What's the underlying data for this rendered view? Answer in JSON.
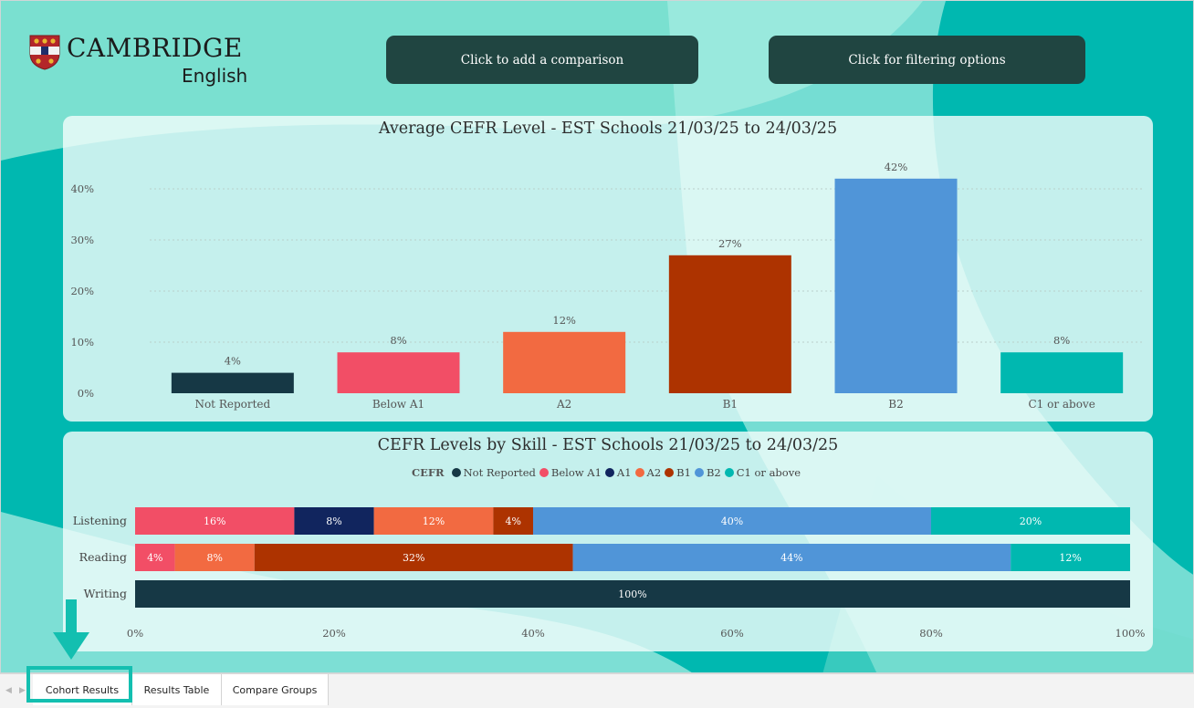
{
  "brand": {
    "name": "CAMBRIDGE",
    "sub": "English"
  },
  "buttons": {
    "compare": "Click to add a comparison",
    "filter": "Click for filtering options"
  },
  "colors": {
    "Not Reported": "#163845",
    "Below A1": "#f24e66",
    "A1": "#11255e",
    "A2": "#f26a41",
    "B1": "#ad3300",
    "B2": "#5095d8",
    "C1 or above": "#00b8b0"
  },
  "chart_data": [
    {
      "type": "bar",
      "title": "Average CEFR Level - EST Schools 21/03/25 to 24/03/25",
      "categories": [
        "Not Reported",
        "Below A1",
        "A2",
        "B1",
        "B2",
        "C1 or above"
      ],
      "values": [
        4,
        8,
        12,
        27,
        42,
        8
      ],
      "value_labels": [
        "4%",
        "8%",
        "12%",
        "27%",
        "42%",
        "8%"
      ],
      "y_ticks": [
        "0%",
        "10%",
        "20%",
        "30%",
        "40%"
      ],
      "ylim": [
        0,
        45
      ],
      "grid": true
    },
    {
      "type": "bar",
      "orientation": "horizontal",
      "stacked": true,
      "title": "CEFR Levels by Skill - EST Schools 21/03/25 to 24/03/25",
      "legend_title": "CEFR",
      "legend": [
        "Not Reported",
        "Below A1",
        "A1",
        "A2",
        "B1",
        "B2",
        "C1 or above"
      ],
      "legend_position": "top",
      "categories": [
        "Listening",
        "Reading",
        "Writing"
      ],
      "rows": [
        {
          "category": "Listening",
          "segments": [
            {
              "name": "Below A1",
              "value": 16,
              "label": "16%"
            },
            {
              "name": "A1",
              "value": 8,
              "label": "8%"
            },
            {
              "name": "A2",
              "value": 12,
              "label": "12%"
            },
            {
              "name": "B1",
              "value": 4,
              "label": "4%"
            },
            {
              "name": "B2",
              "value": 40,
              "label": "40%"
            },
            {
              "name": "C1 or above",
              "value": 20,
              "label": "20%"
            }
          ]
        },
        {
          "category": "Reading",
          "segments": [
            {
              "name": "Below A1",
              "value": 4,
              "label": "4%"
            },
            {
              "name": "A2",
              "value": 8,
              "label": "8%"
            },
            {
              "name": "B1",
              "value": 32,
              "label": "32%"
            },
            {
              "name": "B2",
              "value": 44,
              "label": "44%"
            },
            {
              "name": "C1 or above",
              "value": 12,
              "label": "12%"
            }
          ]
        },
        {
          "category": "Writing",
          "segments": [
            {
              "name": "Not Reported",
              "value": 100,
              "label": "100%"
            }
          ]
        }
      ],
      "x_ticks": [
        "0%",
        "20%",
        "40%",
        "60%",
        "80%",
        "100%"
      ],
      "xlim": [
        0,
        100
      ]
    }
  ],
  "tabs": [
    "Cohort Results",
    "Results Table",
    "Compare Groups"
  ],
  "nav": {
    "prev": "◀",
    "next": "▶"
  }
}
